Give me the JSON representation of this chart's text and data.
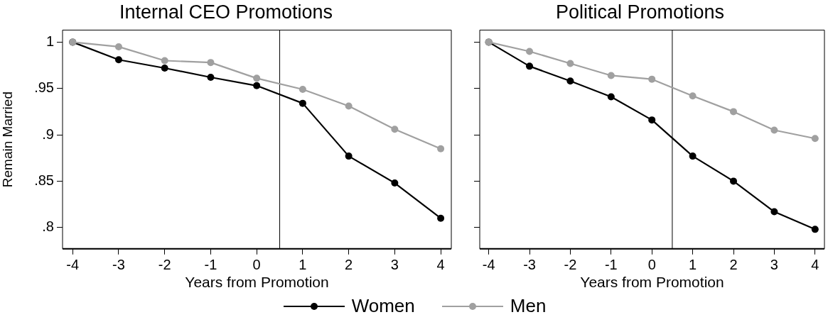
{
  "chart_data": [
    {
      "type": "line",
      "title": "Internal CEO Promotions",
      "xlabel": "Years from Promotion",
      "ylabel": "Remain Married",
      "x": [
        -4,
        -3,
        -2,
        -1,
        0,
        1,
        2,
        3,
        4
      ],
      "xlim": [
        -4.22,
        4.23
      ],
      "xticks": [
        -4,
        -3,
        -2,
        -1,
        0,
        1,
        2,
        3,
        4
      ],
      "ylim": [
        0.777,
        1.013
      ],
      "yticks": [
        {
          "value": 0.8,
          "label": ".8"
        },
        {
          "value": 0.85,
          "label": ".85"
        },
        {
          "value": 0.9,
          "label": ".9"
        },
        {
          "value": 0.95,
          "label": ".95"
        },
        1
      ],
      "marker": "circle",
      "legend": "bottom",
      "grid": false,
      "series": [
        {
          "name": "Women",
          "color": "#000000",
          "values": [
            1,
            0.981,
            0.972,
            0.962,
            0.953,
            0.934,
            0.877,
            0.848,
            0.81
          ]
        },
        {
          "name": "Men",
          "color": "#a0a0a0",
          "values": [
            1,
            0.995,
            0.98,
            0.978,
            0.961,
            0.949,
            0.931,
            0.906,
            0.885
          ]
        }
      ],
      "ref_lines": [
        {
          "axis": "x",
          "value": 0.5,
          "color": "#000000"
        }
      ]
    },
    {
      "type": "line",
      "title": "Political Promotions",
      "xlabel": "Years from Promotion",
      "x": [
        -4,
        -3,
        -2,
        -1,
        0,
        1,
        2,
        3,
        4
      ],
      "xlim": [
        -4.22,
        4.23
      ],
      "xticks": [
        -4,
        -3,
        -2,
        -1,
        0,
        1,
        2,
        3,
        4
      ],
      "ylim": [
        0.777,
        1.013
      ],
      "yticks": [
        {
          "value": 0.8,
          "label": null
        },
        {
          "value": 0.85,
          "label": null
        },
        {
          "value": 0.9,
          "label": null
        },
        {
          "value": 0.95,
          "label": null
        },
        {
          "value": 1,
          "label": null
        }
      ],
      "tick_labels": "x",
      "marker": "circle",
      "grid": false,
      "series": [
        {
          "color": "#000000",
          "values": [
            1,
            0.974,
            0.958,
            0.941,
            0.916,
            0.877,
            0.85,
            0.817,
            0.798
          ]
        },
        {
          "color": "#a0a0a0",
          "values": [
            1,
            0.99,
            0.977,
            0.964,
            0.96,
            0.942,
            0.925,
            0.905,
            0.896
          ]
        }
      ],
      "ref_lines": [
        {
          "axis": "x",
          "value": 0.5,
          "color": "#000000"
        }
      ]
    }
  ]
}
